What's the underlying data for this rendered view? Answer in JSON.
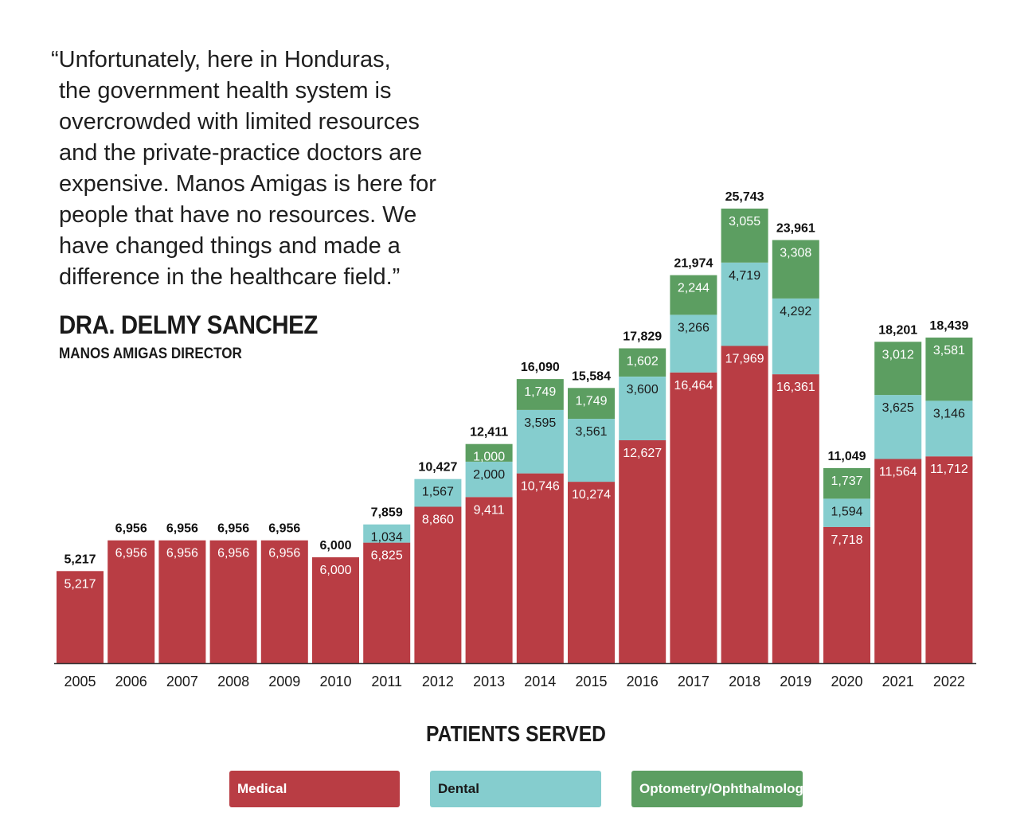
{
  "quote": {
    "lines": [
      "“Unfortunately, here in Honduras,",
      "the government health system is",
      "overcrowded with limited resources",
      "and the private-practice doctors are",
      "expensive. Manos Amigas is here for",
      "people that have no resources. We",
      "have changed things and made a",
      "difference in the healthcare field.”"
    ],
    "author": "DRA. DELMY SANCHEZ",
    "role": "MANOS AMIGAS DIRECTOR"
  },
  "colors": {
    "medical": "#b93d44",
    "dental": "#85cdce",
    "optometry": "#5c9e61",
    "axis": "#333333",
    "text": "#1a1a1a"
  },
  "chart_data": {
    "type": "bar",
    "stacked": true,
    "title": "PATIENTS SERVED",
    "xlabel": "",
    "ylabel": "",
    "ylim": [
      0,
      26000
    ],
    "grid": false,
    "legend_position": "bottom",
    "categories": [
      "2005",
      "2006",
      "2007",
      "2008",
      "2009",
      "2010",
      "2011",
      "2012",
      "2013",
      "2014",
      "2015",
      "2016",
      "2017",
      "2018",
      "2019",
      "2020",
      "2021",
      "2022"
    ],
    "series": [
      {
        "name": "Medical",
        "color_key": "medical",
        "values": [
          5217,
          6956,
          6956,
          6956,
          6956,
          6000,
          6825,
          8860,
          9411,
          10746,
          10274,
          12627,
          16464,
          17969,
          16361,
          7718,
          11564,
          11712
        ],
        "labels": [
          "5,217",
          "6,956",
          "6,956",
          "6,956",
          "6,956",
          "6,000",
          "6,825",
          "8,860",
          "9,411",
          "10,746",
          "10,274",
          "12,627",
          "16,464",
          "17,969",
          "16,361",
          "7,718",
          "11,564",
          "11,712"
        ]
      },
      {
        "name": "Dental",
        "color_key": "dental",
        "values": [
          0,
          0,
          0,
          0,
          0,
          0,
          1034,
          1567,
          2000,
          3595,
          3561,
          3600,
          3266,
          4719,
          4292,
          1594,
          3625,
          3146
        ],
        "labels": [
          "",
          "",
          "",
          "",
          "",
          "",
          "1,034",
          "1,567",
          "2,000",
          "3,595",
          "3,561",
          "3,600",
          "3,266",
          "4,719",
          "4,292",
          "1,594",
          "3,625",
          "3,146"
        ]
      },
      {
        "name": "Optometry/Ophthalmology",
        "color_key": "optometry",
        "values": [
          0,
          0,
          0,
          0,
          0,
          0,
          0,
          0,
          1000,
          1749,
          1749,
          1602,
          2244,
          3055,
          3308,
          1737,
          3012,
          3581
        ],
        "labels": [
          "",
          "",
          "",
          "",
          "",
          "",
          "",
          "",
          "1,000",
          "1,749",
          "1,749",
          "1,602",
          "2,244",
          "3,055",
          "3,308",
          "1,737",
          "3,012",
          "3,581"
        ]
      }
    ],
    "totals": [
      5217,
      6956,
      6956,
      6956,
      6956,
      6000,
      7859,
      10427,
      12411,
      16090,
      15584,
      17829,
      21974,
      25743,
      23961,
      11049,
      18201,
      18439
    ],
    "total_labels": [
      "5,217",
      "6,956",
      "6,956",
      "6,956",
      "6,956",
      "6,000",
      "7,859",
      "10,427",
      "12,411",
      "16,090",
      "15,584",
      "17,829",
      "21,974",
      "25,743",
      "23,961",
      "11,049",
      "18,201",
      "18,439"
    ],
    "legend": [
      "Medical",
      "Dental",
      "Optometry/Ophthalmology"
    ]
  }
}
